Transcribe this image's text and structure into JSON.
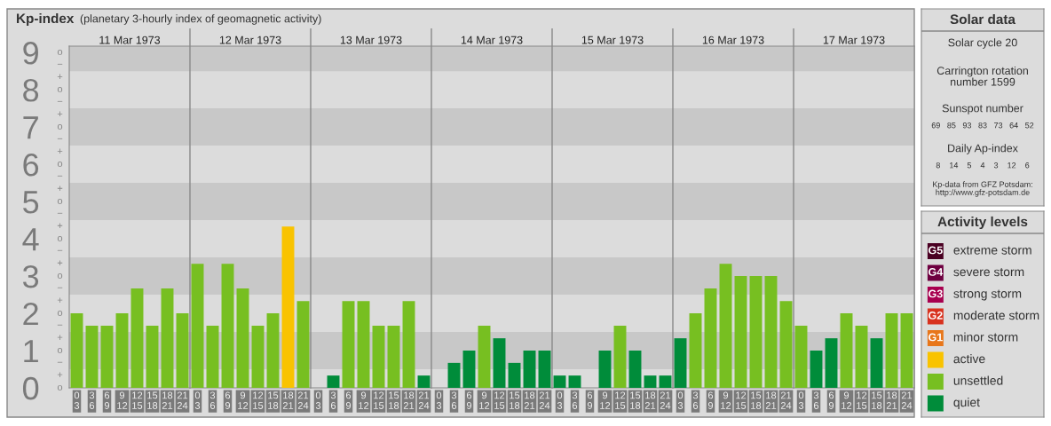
{
  "chart_data": [
    {
      "type": "bar",
      "title": "Kp-index",
      "subtitle": "(planetary 3-hourly index of geomagnetic activity)",
      "categories": [
        "0\n3",
        "3\n6",
        "6\n9",
        "9\n12",
        "12\n15",
        "15\n18",
        "18\n21",
        "21\n24",
        "0\n3",
        "3\n6",
        "6\n9",
        "9\n12",
        "12\n15",
        "15\n18",
        "18\n21",
        "21\n24",
        "0\n3",
        "3\n6",
        "6\n9",
        "9\n12",
        "12\n15",
        "15\n18",
        "18\n21",
        "21\n24",
        "0\n3",
        "3\n6",
        "6\n9",
        "9\n12",
        "12\n15",
        "15\n18",
        "18\n21",
        "21\n24",
        "0\n3",
        "3\n6",
        "6\n9",
        "9\n12",
        "12\n15",
        "15\n18",
        "18\n21",
        "21\n24",
        "0\n3",
        "3\n6",
        "6\n9",
        "9\n12",
        "12\n15",
        "15\n18",
        "18\n21",
        "21\n24",
        "0\n3",
        "3\n6",
        "6\n9",
        "9\n12",
        "12\n15",
        "15\n18",
        "18\n21",
        "21\n24"
      ],
      "values": [
        2,
        1.67,
        1.67,
        2,
        2.67,
        1.67,
        2.67,
        2,
        3.33,
        1.67,
        3.33,
        2.67,
        1.67,
        2,
        4.33,
        2.33,
        0,
        0.33,
        2.33,
        2.33,
        1.67,
        1.67,
        2.33,
        0.33,
        0,
        0.67,
        1,
        1.67,
        1.33,
        0.67,
        1,
        1,
        0.33,
        0.33,
        0,
        1,
        1.67,
        1,
        0.33,
        0.33,
        1.33,
        2,
        2.67,
        3.33,
        3,
        3,
        3,
        2.33,
        1.67,
        1,
        1.33,
        2,
        1.67,
        1.33,
        2,
        2
      ],
      "colors": [
        "#77bf21",
        "#77bf21",
        "#77bf21",
        "#77bf21",
        "#77bf21",
        "#77bf21",
        "#77bf21",
        "#77bf21",
        "#77bf21",
        "#77bf21",
        "#77bf21",
        "#77bf21",
        "#77bf21",
        "#77bf21",
        "#f9c300",
        "#77bf21",
        "#008c3a",
        "#008c3a",
        "#77bf21",
        "#77bf21",
        "#77bf21",
        "#77bf21",
        "#77bf21",
        "#008c3a",
        "#008c3a",
        "#008c3a",
        "#008c3a",
        "#77bf21",
        "#008c3a",
        "#008c3a",
        "#008c3a",
        "#008c3a",
        "#008c3a",
        "#008c3a",
        "#008c3a",
        "#008c3a",
        "#77bf21",
        "#008c3a",
        "#008c3a",
        "#008c3a",
        "#008c3a",
        "#77bf21",
        "#77bf21",
        "#77bf21",
        "#77bf21",
        "#77bf21",
        "#77bf21",
        "#77bf21",
        "#77bf21",
        "#008c3a",
        "#008c3a",
        "#77bf21",
        "#77bf21",
        "#008c3a",
        "#77bf21",
        "#77bf21"
      ],
      "annotations": [
        "11 Mar 1973",
        "12 Mar 1973",
        "13 Mar 1973",
        "14 Mar 1973",
        "15 Mar 1973",
        "16 Mar 1973",
        "17 Mar 1973",
        "o",
        "+",
        "−",
        "o",
        "+",
        "−",
        "o",
        "+",
        "−",
        "o",
        "+",
        "−",
        "o",
        "+",
        "−",
        "o",
        "+",
        "−",
        "o",
        "+",
        "−",
        "o",
        "+",
        "−",
        "o",
        "+",
        "−",
        "o"
      ],
      "ylim": [
        0,
        9.17
      ],
      "yticks": [
        0,
        1,
        2,
        3,
        4,
        5,
        6,
        7,
        8,
        9
      ],
      "bands": [
        {
          "axis": "y",
          "from": 0.5,
          "to": 1.5,
          "color": "#c8c8c8"
        },
        {
          "axis": "y",
          "from": 2.5,
          "to": 3.5,
          "color": "#c8c8c8"
        },
        {
          "axis": "y",
          "from": 4.5,
          "to": 5.5,
          "color": "#c8c8c8"
        },
        {
          "axis": "y",
          "from": 6.5,
          "to": 7.5,
          "color": "#c8c8c8"
        },
        {
          "axis": "y",
          "from": 8.5,
          "to": 9.17,
          "color": "#c8c8c8"
        }
      ],
      "grid": false
    },
    {
      "type": "other",
      "title": "Solar data",
      "annotations": [
        "Solar cycle 20",
        "Carrington rotation\nnumber 1599",
        "Sunspot number",
        "69   85   93   83   73   64   52",
        "Daily Ap-index",
        "8    14    5    4    3    12    6",
        "Kp-data from GFZ Potsdam:\nhttp://www.gfz-potsdam.de"
      ]
    },
    {
      "type": "other",
      "title": "Activity levels",
      "categories": [
        "extreme storm",
        "severe storm",
        "strong storm",
        "moderate storm",
        "minor storm",
        "active",
        "unsettled",
        "quiet"
      ],
      "colors": [
        "#4a0022",
        "#6e0040",
        "#a8004f",
        "#d8321e",
        "#e8761a",
        "#f9c300",
        "#77bf21",
        "#008c3a"
      ],
      "annotations": [
        "G5",
        "G4",
        "G3",
        "G2",
        "G1"
      ]
    }
  ]
}
